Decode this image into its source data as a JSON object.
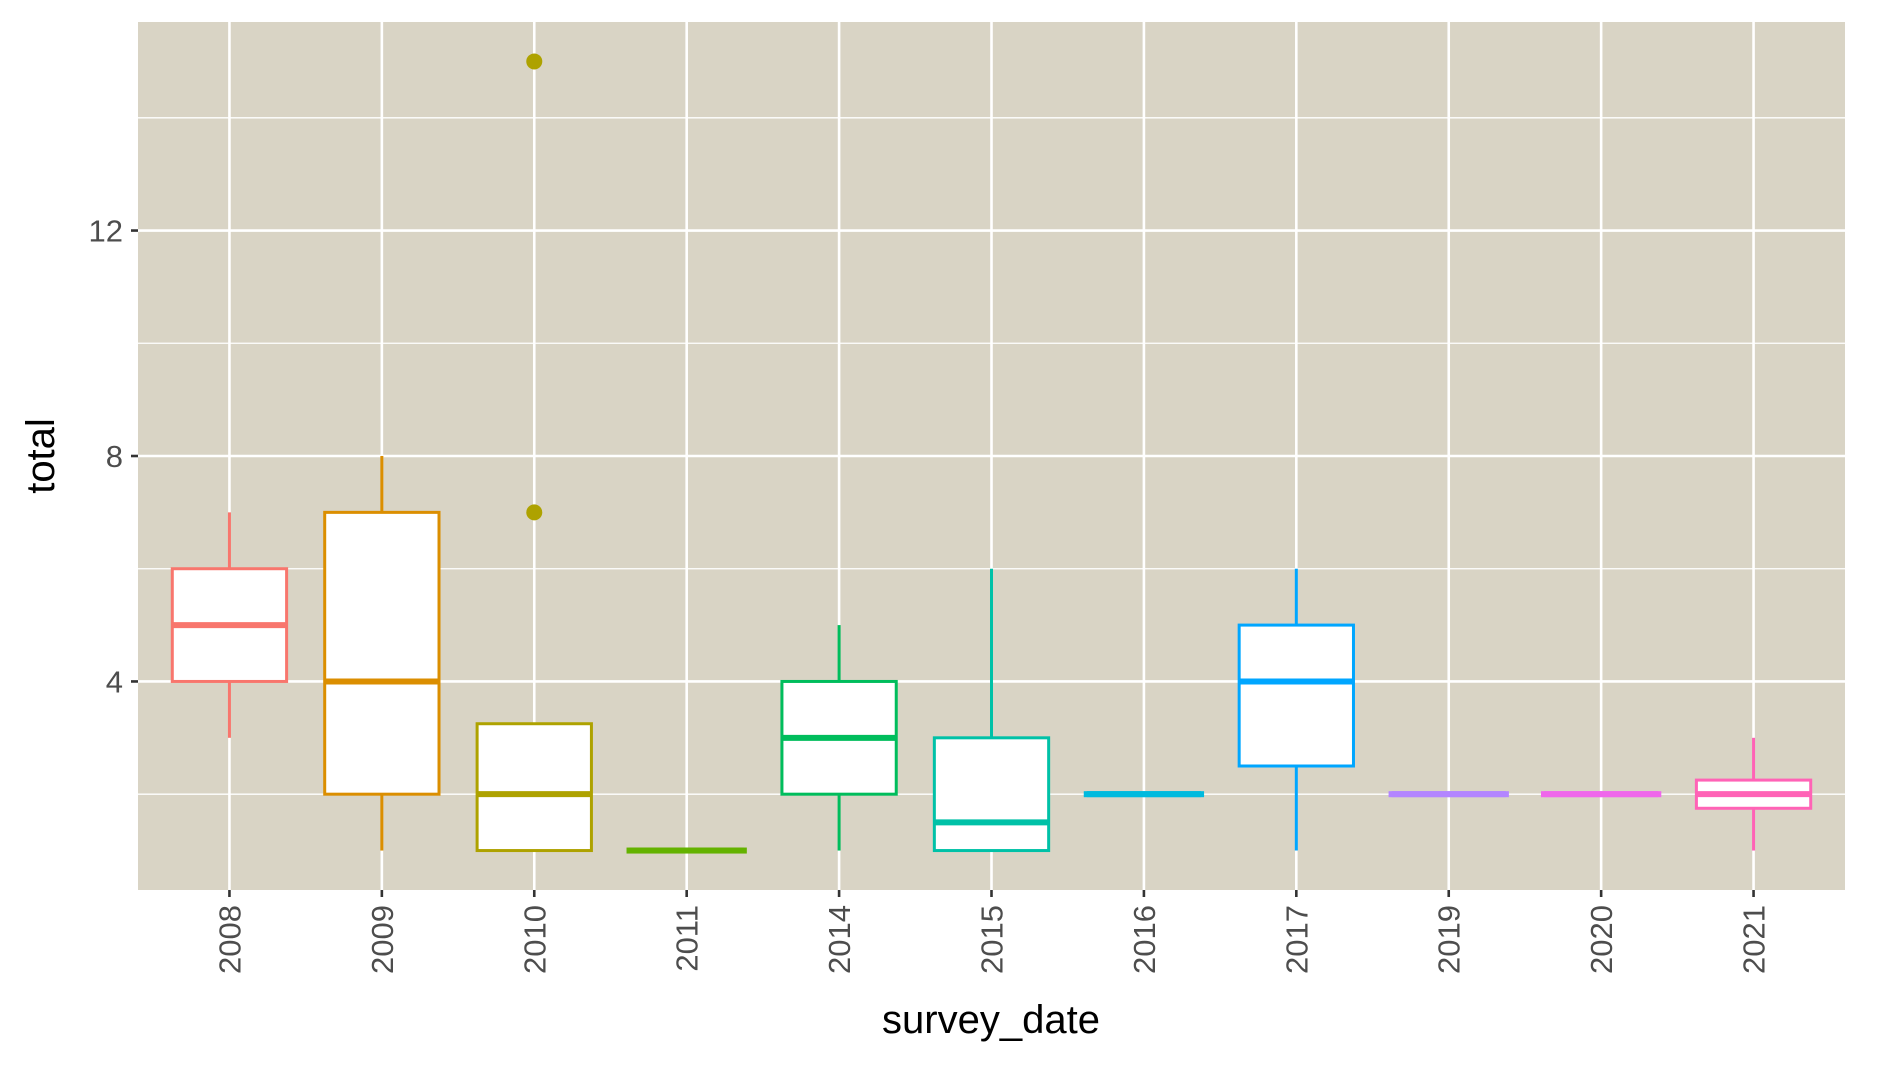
{
  "chart_data": {
    "type": "boxplot",
    "title": "",
    "xlabel": "survey_date",
    "ylabel": "total",
    "categories": [
      "2008",
      "2009",
      "2010",
      "2011",
      "2014",
      "2015",
      "2016",
      "2017",
      "2019",
      "2020",
      "2021"
    ],
    "ylim": [
      0.3,
      15.7
    ],
    "yticks": [
      4,
      8,
      12
    ],
    "y_minor_gridlines": [
      2,
      6,
      10,
      14
    ],
    "grid": true,
    "legend": "none",
    "panel_background": "#d9d4c5",
    "grid_color": "#ffffff",
    "boxes": [
      {
        "category": "2008",
        "lower_whisker": 3,
        "q1": 4,
        "median": 5,
        "q3": 6,
        "upper_whisker": 7,
        "outliers": [],
        "color": "#F8766D"
      },
      {
        "category": "2009",
        "lower_whisker": 1,
        "q1": 2,
        "median": 4,
        "q3": 7,
        "upper_whisker": 8,
        "outliers": [],
        "color": "#DB8E00"
      },
      {
        "category": "2010",
        "lower_whisker": 1,
        "q1": 1,
        "median": 2,
        "q3": 3.25,
        "upper_whisker": 3.25,
        "outliers": [
          7,
          15
        ],
        "color": "#AEA200"
      },
      {
        "category": "2011",
        "lower_whisker": 1,
        "q1": 1,
        "median": 1,
        "q3": 1,
        "upper_whisker": 1,
        "outliers": [],
        "color": "#64B200"
      },
      {
        "category": "2014",
        "lower_whisker": 1,
        "q1": 2,
        "median": 3,
        "q3": 4,
        "upper_whisker": 5,
        "outliers": [],
        "color": "#00BD5C"
      },
      {
        "category": "2015",
        "lower_whisker": 1,
        "q1": 1,
        "median": 1.5,
        "q3": 3,
        "upper_whisker": 6,
        "outliers": [],
        "color": "#00C1A7"
      },
      {
        "category": "2016",
        "lower_whisker": 2,
        "q1": 2,
        "median": 2,
        "q3": 2,
        "upper_whisker": 2,
        "outliers": [],
        "color": "#00BADE"
      },
      {
        "category": "2017",
        "lower_whisker": 1,
        "q1": 2.5,
        "median": 4,
        "q3": 5,
        "upper_whisker": 6,
        "outliers": [],
        "color": "#00A6FF"
      },
      {
        "category": "2019",
        "lower_whisker": 2,
        "q1": 2,
        "median": 2,
        "q3": 2,
        "upper_whisker": 2,
        "outliers": [],
        "color": "#B385FF"
      },
      {
        "category": "2020",
        "lower_whisker": 2,
        "q1": 2,
        "median": 2,
        "q3": 2,
        "upper_whisker": 2,
        "outliers": [],
        "color": "#EF67EB"
      },
      {
        "category": "2021",
        "lower_whisker": 1,
        "q1": 1.75,
        "median": 2,
        "q3": 2.25,
        "upper_whisker": 3,
        "outliers": [],
        "color": "#FF63B6"
      }
    ]
  }
}
